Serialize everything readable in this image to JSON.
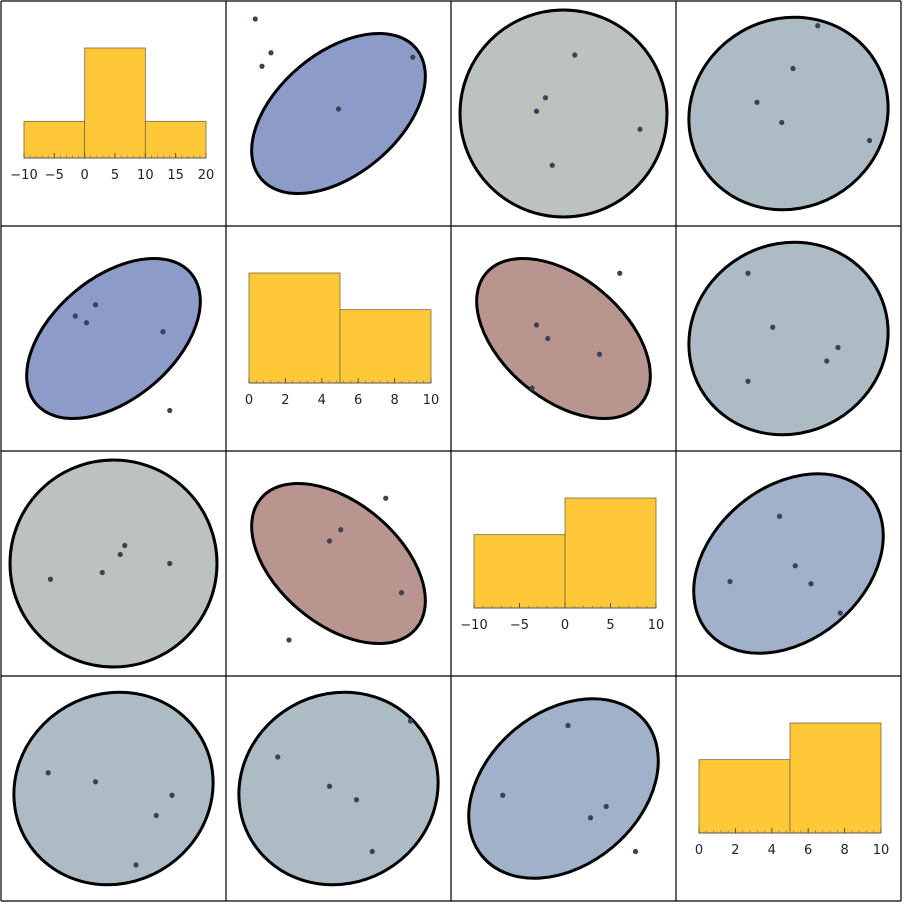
{
  "colors": {
    "histogram_bar": "#FFC839",
    "blue_strong": "#8D9BC9",
    "blue_mid": "#A0B1C9",
    "blue_gray": "#ADBCC4",
    "gray": "#BCC2BE",
    "red": "#B9958F",
    "point": "#3F3F55",
    "ellipse_stroke": "#000000",
    "grid_line": "#000000"
  },
  "chart_data": {
    "type": "scatter_matrix",
    "n_variables": 4,
    "histograms": [
      {
        "diag": 0,
        "bins": [
          [
            -10,
            0
          ],
          [
            0,
            10
          ],
          [
            10,
            20
          ]
        ],
        "counts": [
          1,
          3,
          1
        ],
        "xlim": [
          -10,
          20
        ],
        "ticks": [
          -10,
          -5,
          0,
          5,
          10,
          15,
          20
        ],
        "tick_labels": [
          "−10",
          "−5",
          "0",
          "5",
          "10",
          "15",
          "20"
        ]
      },
      {
        "diag": 1,
        "bins": [
          [
            0,
            5
          ],
          [
            5,
            10
          ]
        ],
        "counts": [
          3,
          2
        ],
        "xlim": [
          0,
          10
        ],
        "ticks": [
          0,
          2,
          4,
          6,
          8,
          10
        ],
        "tick_labels": [
          "0",
          "2",
          "4",
          "6",
          "8",
          "10"
        ]
      },
      {
        "diag": 2,
        "bins": [
          [
            -10,
            0
          ],
          [
            0,
            10
          ]
        ],
        "counts": [
          2,
          3
        ],
        "xlim": [
          -10,
          10
        ],
        "ticks": [
          -10,
          -5,
          0,
          5,
          10
        ],
        "tick_labels": [
          "−10",
          "−5",
          "0",
          "5",
          "10"
        ]
      },
      {
        "diag": 3,
        "bins": [
          [
            0,
            5
          ],
          [
            5,
            10
          ]
        ],
        "counts": [
          2,
          3
        ],
        "xlim": [
          0,
          10
        ],
        "ticks": [
          0,
          2,
          4,
          6,
          8,
          10
        ],
        "tick_labels": [
          "0",
          "2",
          "4",
          "6",
          "8",
          "10"
        ]
      }
    ],
    "scatter_cells": [
      {
        "row": 0,
        "col": 1,
        "color": "blue_strong",
        "tilt_deg": -40,
        "rx": 0.45,
        "ry": 0.27,
        "points": [
          [
            0.16,
            0.71
          ],
          [
            0.13,
            0.92
          ],
          [
            0.2,
            0.77
          ],
          [
            0.5,
            0.52
          ],
          [
            0.83,
            0.75
          ]
        ]
      },
      {
        "row": 0,
        "col": 2,
        "color": "gray",
        "tilt_deg": 0,
        "rx": 0.46,
        "ry": 0.46,
        "points": [
          [
            0.55,
            0.76
          ],
          [
            0.45,
            0.27
          ],
          [
            0.38,
            0.51
          ],
          [
            0.42,
            0.57
          ],
          [
            0.84,
            0.43
          ]
        ]
      },
      {
        "row": 0,
        "col": 3,
        "color": "blue_gray",
        "tilt_deg": -30,
        "rx": 0.45,
        "ry": 0.42,
        "points": [
          [
            0.63,
            0.89
          ],
          [
            0.52,
            0.7
          ],
          [
            0.47,
            0.46
          ],
          [
            0.36,
            0.55
          ],
          [
            0.86,
            0.38
          ]
        ]
      },
      {
        "row": 1,
        "col": 0,
        "color": "blue_strong",
        "tilt_deg": -40,
        "rx": 0.45,
        "ry": 0.27,
        "points": [
          [
            0.33,
            0.6
          ],
          [
            0.38,
            0.57
          ],
          [
            0.75,
            0.18
          ],
          [
            0.42,
            0.65
          ],
          [
            0.72,
            0.53
          ]
        ]
      },
      {
        "row": 1,
        "col": 2,
        "color": "red",
        "tilt_deg": 40,
        "rx": 0.45,
        "ry": 0.27,
        "points": [
          [
            0.75,
            0.79
          ],
          [
            0.36,
            0.28
          ],
          [
            0.38,
            0.56
          ],
          [
            0.43,
            0.5
          ],
          [
            0.66,
            0.43
          ]
        ]
      },
      {
        "row": 1,
        "col": 3,
        "color": "blue_gray",
        "tilt_deg": -30,
        "rx": 0.45,
        "ry": 0.42,
        "points": [
          [
            0.32,
            0.79
          ],
          [
            0.32,
            0.31
          ],
          [
            0.43,
            0.55
          ],
          [
            0.67,
            0.4
          ],
          [
            0.72,
            0.46
          ]
        ]
      },
      {
        "row": 2,
        "col": 0,
        "color": "gray",
        "tilt_deg": 0,
        "rx": 0.46,
        "ry": 0.46,
        "points": [
          [
            0.53,
            0.54
          ],
          [
            0.22,
            0.43
          ],
          [
            0.45,
            0.46
          ],
          [
            0.55,
            0.58
          ],
          [
            0.75,
            0.5
          ]
        ]
      },
      {
        "row": 2,
        "col": 1,
        "color": "red",
        "tilt_deg": 40,
        "rx": 0.45,
        "ry": 0.27,
        "points": [
          [
            0.71,
            0.79
          ],
          [
            0.28,
            0.16
          ],
          [
            0.51,
            0.65
          ],
          [
            0.46,
            0.6
          ],
          [
            0.78,
            0.37
          ]
        ]
      },
      {
        "row": 2,
        "col": 3,
        "color": "blue_mid",
        "tilt_deg": -40,
        "rx": 0.47,
        "ry": 0.34,
        "points": [
          [
            0.46,
            0.71
          ],
          [
            0.53,
            0.49
          ],
          [
            0.6,
            0.41
          ],
          [
            0.24,
            0.42
          ],
          [
            0.73,
            0.28
          ]
        ]
      },
      {
        "row": 3,
        "col": 0,
        "color": "blue_gray",
        "tilt_deg": -30,
        "rx": 0.45,
        "ry": 0.42,
        "points": [
          [
            0.42,
            0.53
          ],
          [
            0.21,
            0.57
          ],
          [
            0.76,
            0.47
          ],
          [
            0.6,
            0.16
          ],
          [
            0.69,
            0.38
          ]
        ]
      },
      {
        "row": 3,
        "col": 1,
        "color": "blue_gray",
        "tilt_deg": -30,
        "rx": 0.45,
        "ry": 0.42,
        "points": [
          [
            0.46,
            0.51
          ],
          [
            0.82,
            0.8
          ],
          [
            0.58,
            0.45
          ],
          [
            0.23,
            0.64
          ],
          [
            0.65,
            0.22
          ]
        ]
      },
      {
        "row": 3,
        "col": 2,
        "color": "blue_mid",
        "tilt_deg": -40,
        "rx": 0.47,
        "ry": 0.34,
        "points": [
          [
            0.52,
            0.78
          ],
          [
            0.23,
            0.47
          ],
          [
            0.69,
            0.42
          ],
          [
            0.62,
            0.37
          ],
          [
            0.82,
            0.22
          ]
        ]
      }
    ]
  }
}
